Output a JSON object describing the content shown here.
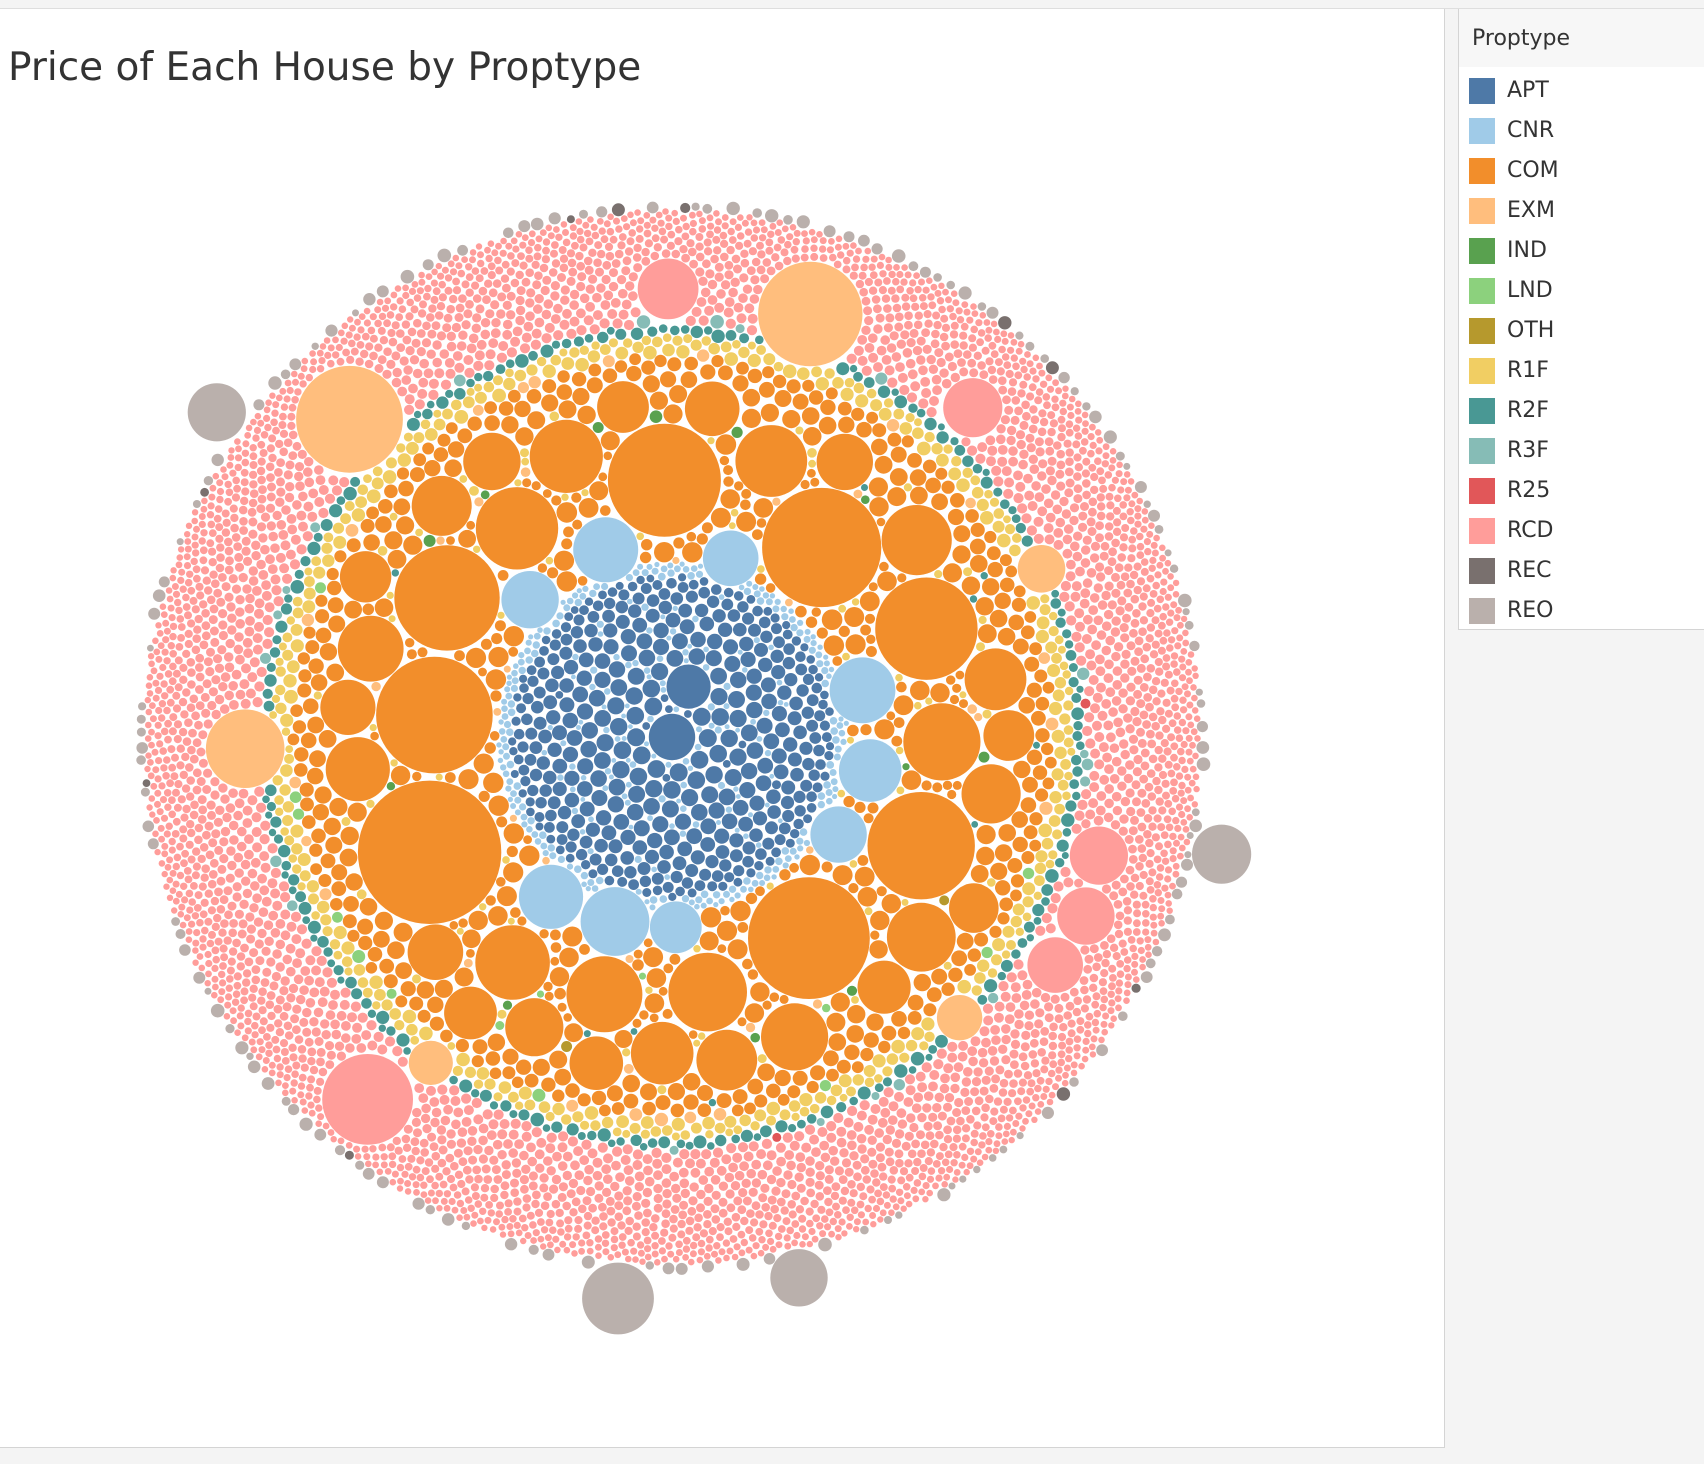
{
  "chart_data": {
    "type": "packed-bubble",
    "title": "Price of Each House by Proptype",
    "legend": {
      "title": "Proptype",
      "position": "right"
    },
    "categories": [
      "APT",
      "CNR",
      "COM",
      "EXM",
      "IND",
      "LND",
      "OTH",
      "R1F",
      "R2F",
      "R3F",
      "R25",
      "RCD",
      "REC",
      "REO"
    ],
    "colors": {
      "APT": "#4e79a7",
      "CNR": "#a0cbe8",
      "COM": "#f28e2b",
      "EXM": "#ffbe7d",
      "IND": "#59a14f",
      "LND": "#8cd17d",
      "OTH": "#b6992d",
      "R1F": "#f1ce63",
      "R2F": "#499894",
      "R3F": "#86bcb6",
      "R25": "#e15759",
      "RCD": "#ff9d9a",
      "REC": "#79706e",
      "REO": "#bab0ac"
    },
    "large_bubbles": [
      {
        "proptype": "COM",
        "price": 1000
      },
      {
        "proptype": "COM",
        "price": 720
      },
      {
        "proptype": "COM",
        "price": 690
      },
      {
        "proptype": "COM",
        "price": 660
      },
      {
        "proptype": "COM",
        "price": 620
      },
      {
        "proptype": "COM",
        "price": 560
      },
      {
        "proptype": "COM",
        "price": 540
      },
      {
        "proptype": "COM",
        "price": 510
      },
      {
        "proptype": "COM",
        "price": 330
      },
      {
        "proptype": "COM",
        "price": 300
      },
      {
        "proptype": "COM",
        "price": 290
      },
      {
        "proptype": "COM",
        "price": 280
      },
      {
        "proptype": "COM",
        "price": 270
      },
      {
        "proptype": "COM",
        "price": 260
      },
      {
        "proptype": "COM",
        "price": 250
      },
      {
        "proptype": "COM",
        "price": 240
      },
      {
        "proptype": "COM",
        "price": 230
      },
      {
        "proptype": "COM",
        "price": 220
      },
      {
        "proptype": "COM",
        "price": 210
      },
      {
        "proptype": "COM",
        "price": 200
      },
      {
        "proptype": "COM",
        "price": 190
      },
      {
        "proptype": "COM",
        "price": 185
      },
      {
        "proptype": "COM",
        "price": 180
      },
      {
        "proptype": "COM",
        "price": 175
      },
      {
        "proptype": "COM",
        "price": 170
      },
      {
        "proptype": "COM",
        "price": 165
      },
      {
        "proptype": "COM",
        "price": 160
      },
      {
        "proptype": "COM",
        "price": 155
      },
      {
        "proptype": "COM",
        "price": 150
      },
      {
        "proptype": "COM",
        "price": 148
      },
      {
        "proptype": "COM",
        "price": 145
      },
      {
        "proptype": "COM",
        "price": 140
      },
      {
        "proptype": "COM",
        "price": 138
      },
      {
        "proptype": "COM",
        "price": 135
      },
      {
        "proptype": "COM",
        "price": 130
      },
      {
        "proptype": "COM",
        "price": 128
      },
      {
        "proptype": "COM",
        "price": 125
      },
      {
        "proptype": "COM",
        "price": 120
      },
      {
        "proptype": "EXM",
        "price": 555
      },
      {
        "proptype": "EXM",
        "price": 530
      },
      {
        "proptype": "EXM",
        "price": 300
      },
      {
        "proptype": "EXM",
        "price": 110
      },
      {
        "proptype": "EXM",
        "price": 100
      },
      {
        "proptype": "EXM",
        "price": 95
      },
      {
        "proptype": "CNR",
        "price": 230
      },
      {
        "proptype": "CNR",
        "price": 210
      },
      {
        "proptype": "CNR",
        "price": 205
      },
      {
        "proptype": "CNR",
        "price": 200
      },
      {
        "proptype": "CNR",
        "price": 190
      },
      {
        "proptype": "CNR",
        "price": 160
      },
      {
        "proptype": "CNR",
        "price": 155
      },
      {
        "proptype": "CNR",
        "price": 150
      },
      {
        "proptype": "CNR",
        "price": 130
      },
      {
        "proptype": "APT",
        "price": 105
      },
      {
        "proptype": "APT",
        "price": 95
      },
      {
        "proptype": "RCD",
        "price": 400
      },
      {
        "proptype": "RCD",
        "price": 180
      },
      {
        "proptype": "RCD",
        "price": 170
      },
      {
        "proptype": "RCD",
        "price": 165
      },
      {
        "proptype": "RCD",
        "price": 160
      },
      {
        "proptype": "RCD",
        "price": 150
      },
      {
        "proptype": "REO",
        "price": 250
      },
      {
        "proptype": "REO",
        "price": 170
      },
      {
        "proptype": "REO",
        "price": 165
      },
      {
        "proptype": "REO",
        "price": 160
      }
    ],
    "small_bubble_counts": {
      "APT": 380,
      "CNR": 300,
      "COM": 520,
      "EXM": 40,
      "IND": 12,
      "LND": 14,
      "OTH": 2,
      "R1F": 380,
      "R2F": 200,
      "R3F": 20,
      "R25": 2,
      "RCD": 3400,
      "REC": 10,
      "REO": 140
    }
  }
}
